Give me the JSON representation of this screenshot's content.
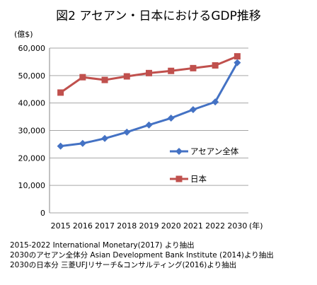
{
  "title": "図2 アセアン・日本におけるGDP推移",
  "notes": [
    "2015-2022 International Monetary(2017) より抽出",
    "2030のアセアン全体分 Asian Development Bank Institute (2014)より抽出",
    "2030の日本分 三菱UFJリサーチ&コンサルティング(2016)より抽出"
  ],
  "chart_data": {
    "type": "line",
    "categories": [
      "2015",
      "2016",
      "2017",
      "2018",
      "2019",
      "2020",
      "2021",
      "2022",
      "2030"
    ],
    "ylabel": "(億$)",
    "xlabel": "(年)",
    "ylim": [
      0,
      60000
    ],
    "yticks": [
      0,
      10000,
      20000,
      30000,
      40000,
      50000,
      60000
    ],
    "ytick_labels": [
      "0",
      "10,000",
      "20,000",
      "30,000",
      "40,000",
      "50,000",
      "60,000"
    ],
    "grid": true,
    "series": [
      {
        "name": "アセアン全体",
        "color": "#4472c4",
        "marker": "diamond",
        "values": [
          24300,
          25300,
          27100,
          29400,
          32000,
          34500,
          37600,
          40400,
          54700
        ]
      },
      {
        "name": "日本",
        "color": "#c0504d",
        "marker": "square",
        "values": [
          43800,
          49400,
          48400,
          49700,
          50900,
          51700,
          52700,
          53700,
          57000
        ]
      }
    ]
  }
}
